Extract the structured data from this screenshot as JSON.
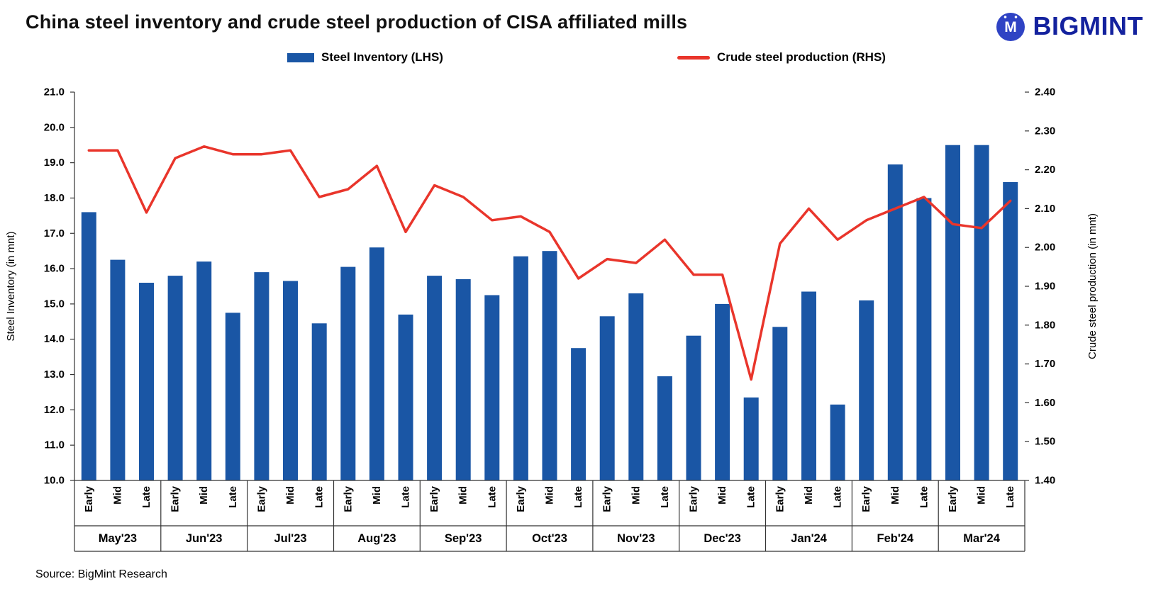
{
  "header": {
    "title": "China steel inventory and crude steel production of CISA affiliated mills",
    "brand": "BIGMINT"
  },
  "legend": [
    {
      "label": "Steel Inventory (LHS)",
      "color": "#1a56a5",
      "type": "bar"
    },
    {
      "label": "Crude steel production (RHS)",
      "color": "#e9352b",
      "type": "line"
    }
  ],
  "source": "Source: BigMint Research",
  "colors": {
    "bar": "#1a56a5",
    "line": "#e9352b",
    "brand": "#14229e"
  },
  "chart_data": {
    "type": "bar+line",
    "title": "China steel inventory and crude steel production of CISA affiliated mills",
    "months": [
      "May'23",
      "Jun'23",
      "Jul'23",
      "Aug'23",
      "Sep'23",
      "Oct'23",
      "Nov'23",
      "Dec'23",
      "Jan'24",
      "Feb'24",
      "Mar'24"
    ],
    "periods": [
      "Early",
      "Mid",
      "Late"
    ],
    "ylabel_left": "Steel Inventory (in mnt)",
    "ylabel_right": "Crude steel production (in mnt)",
    "ylim_left": [
      10.0,
      21.0
    ],
    "ytick_step_left": 1.0,
    "ylim_right": [
      1.4,
      2.4
    ],
    "ytick_step_right": 0.1,
    "grid": false,
    "legend_position": "top",
    "series": [
      {
        "name": "Steel Inventory (LHS)",
        "type": "bar",
        "axis": "left",
        "color": "#1a56a5",
        "values": [
          17.6,
          16.25,
          15.6,
          15.8,
          16.2,
          14.75,
          15.9,
          15.65,
          14.45,
          16.05,
          16.6,
          14.7,
          15.8,
          15.7,
          15.25,
          16.35,
          16.5,
          13.75,
          14.65,
          15.3,
          12.95,
          14.1,
          15.0,
          12.35,
          14.35,
          15.35,
          12.15,
          15.1,
          18.95,
          18.0,
          19.5,
          19.5,
          18.45
        ]
      },
      {
        "name": "Crude steel production (RHS)",
        "type": "line",
        "axis": "right",
        "color": "#e9352b",
        "values": [
          2.25,
          2.25,
          2.09,
          2.23,
          2.26,
          2.24,
          2.24,
          2.25,
          2.13,
          2.15,
          2.21,
          2.04,
          2.16,
          2.13,
          2.07,
          2.08,
          2.04,
          1.92,
          1.97,
          1.96,
          2.02,
          1.93,
          1.93,
          1.66,
          2.01,
          2.1,
          2.02,
          2.07,
          2.1,
          2.13,
          2.06,
          2.05,
          2.12
        ]
      }
    ]
  }
}
